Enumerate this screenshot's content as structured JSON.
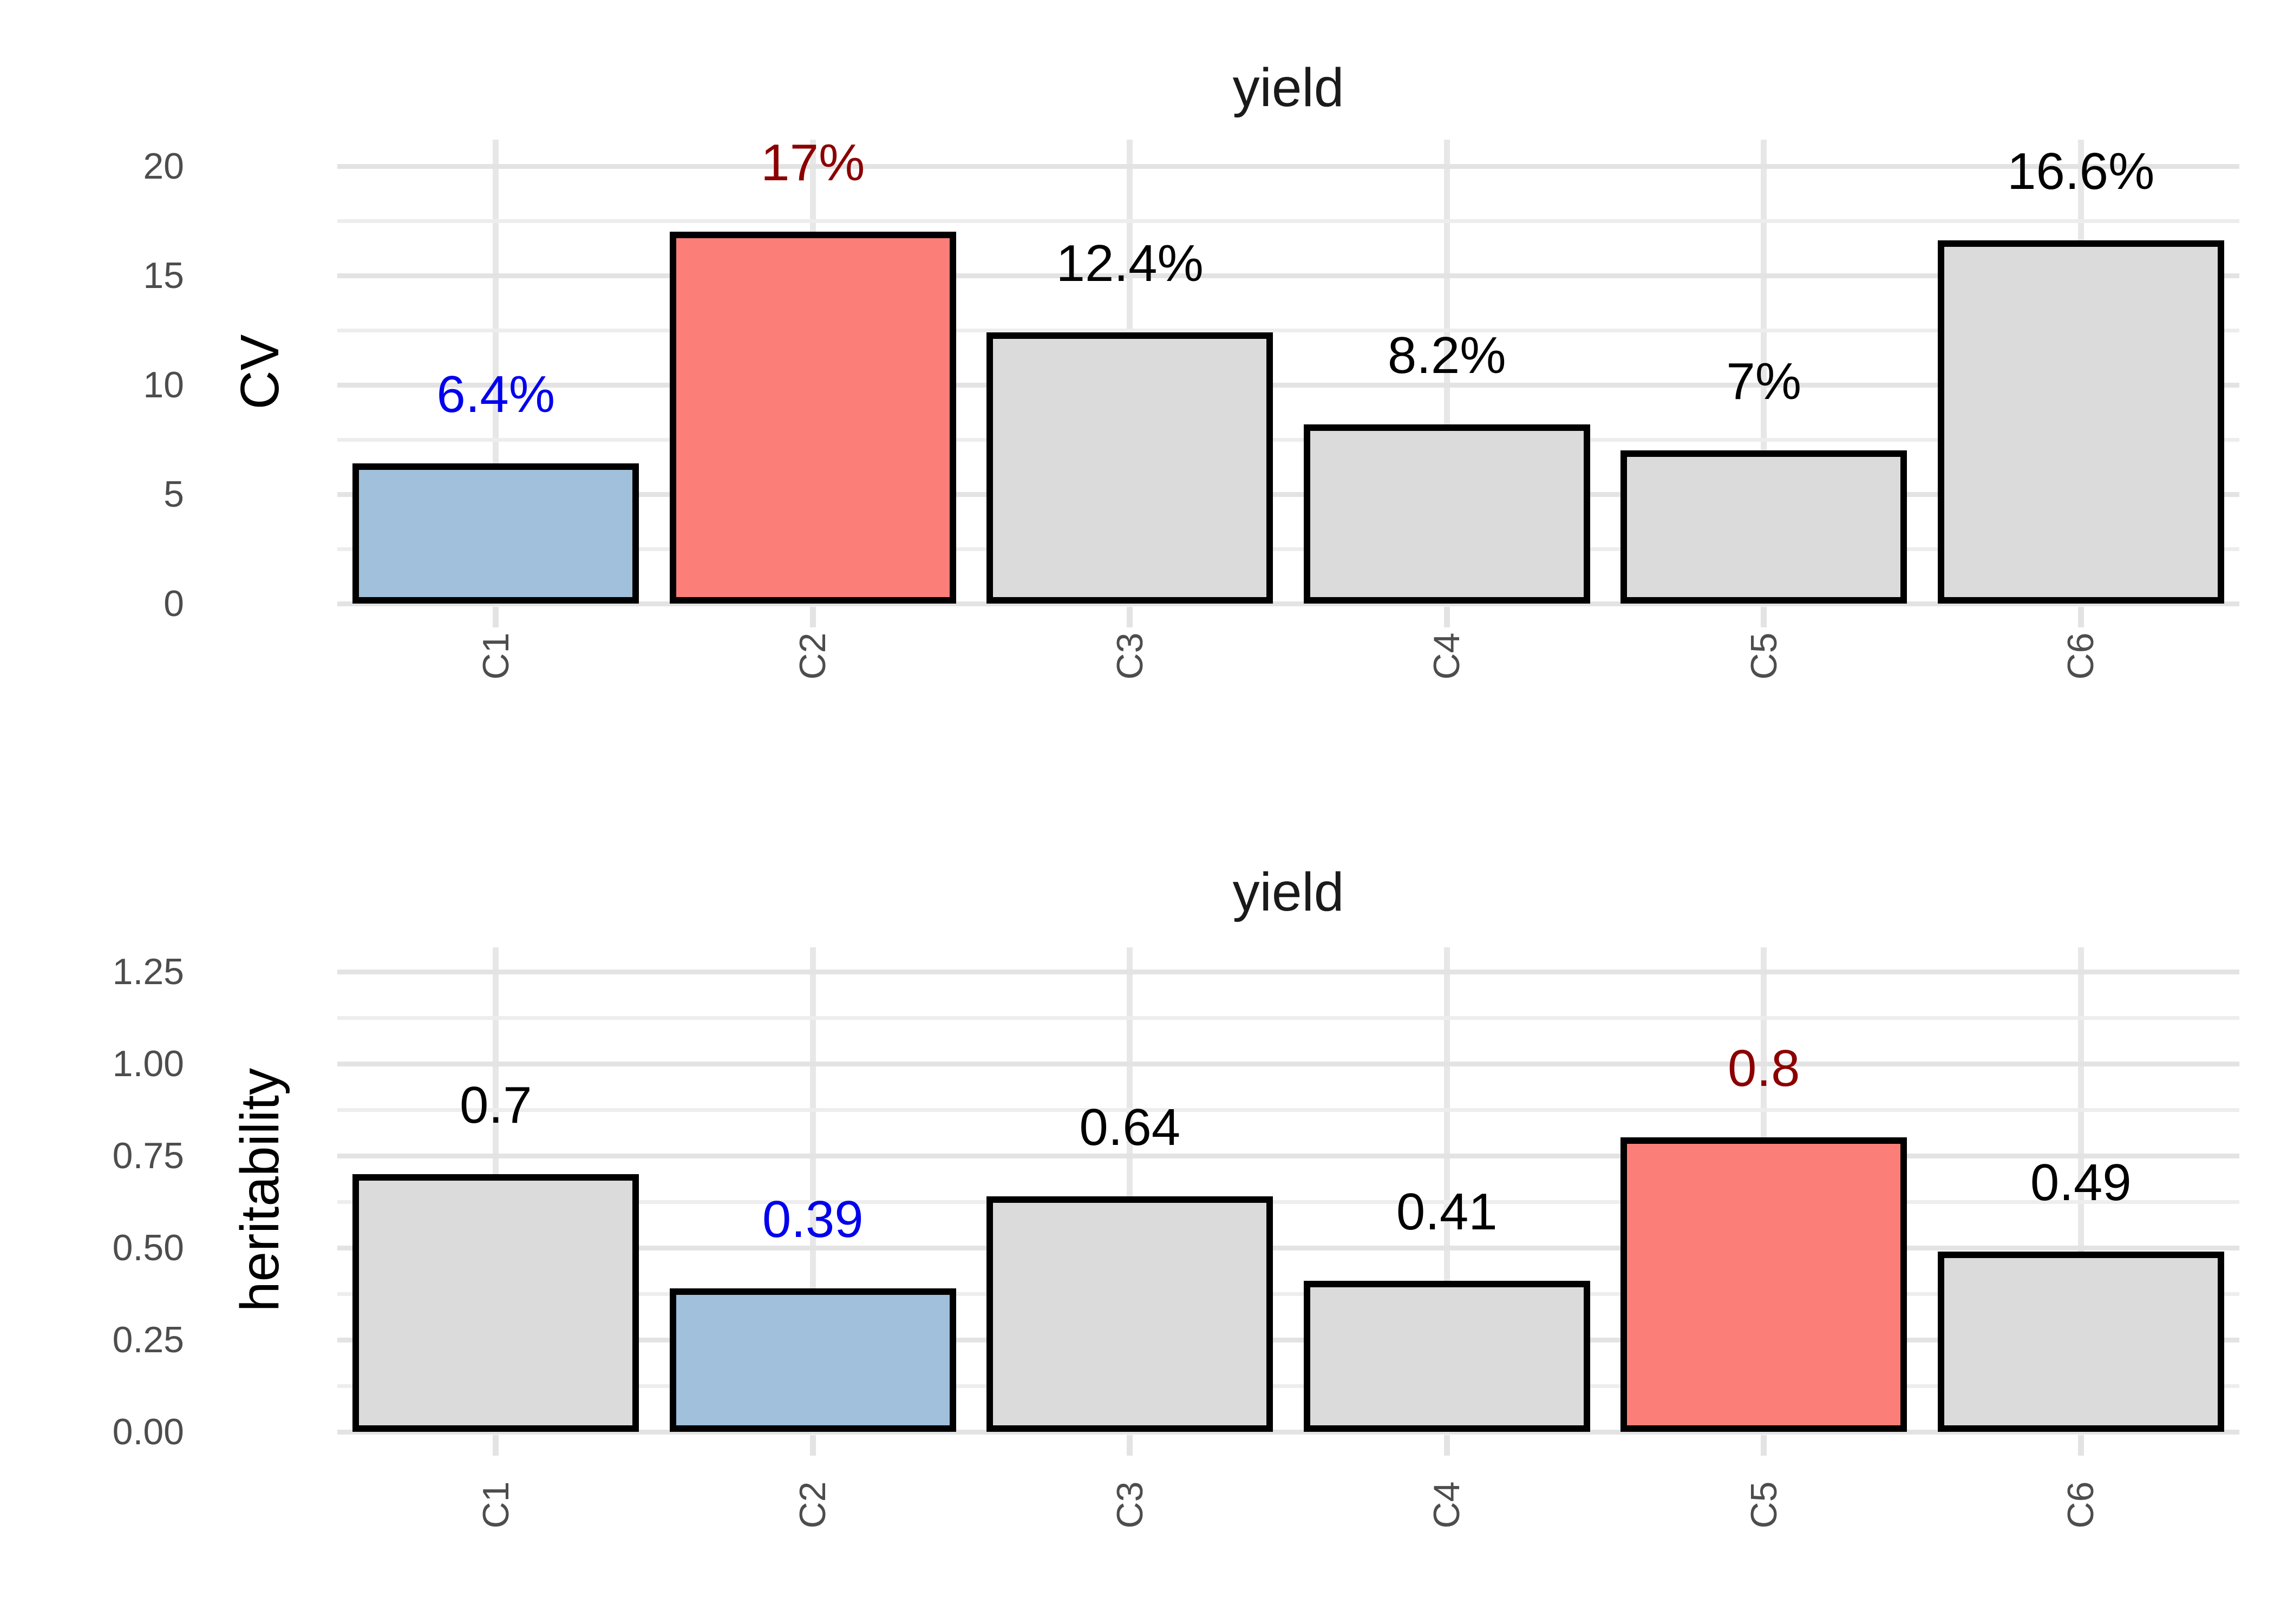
{
  "figure": {
    "background": "#FFFFFF",
    "charts_count": 2
  },
  "colors": {
    "bar_default_fill": "#DBDBDB",
    "bar_lowest_fill": "#A0C0DB",
    "bar_highest_fill": "#FB7F78",
    "bar_border": "#000000",
    "value_label_default": "#000000",
    "value_label_lowest": "#0000EE",
    "value_label_highest": "#8B0000",
    "axis_text": "#4D4D4D",
    "axis_title": "#000000",
    "chart_title": "#1A1A1A",
    "grid_major": "#E3E3E3",
    "grid_minor": "#EDEDED",
    "grid_vertical": "#E7E7E7",
    "axis_tick_mark": "#E3E3E3"
  },
  "chart_data": [
    {
      "type": "bar",
      "title": "yield",
      "xlabel": "",
      "ylabel": "CV",
      "categories": [
        "C1",
        "C2",
        "C3",
        "C4",
        "C5",
        "C6"
      ],
      "values": [
        6.4,
        17,
        12.4,
        8.2,
        7,
        16.6
      ],
      "value_labels": [
        "6.4%",
        "17%",
        "12.4%",
        "8.2%",
        "7%",
        "16.6%"
      ],
      "lowest_index": 0,
      "highest_index": 1,
      "y_axis": {
        "ticks": [
          0,
          5,
          10,
          15,
          20
        ],
        "tick_labels": [
          "0",
          "5",
          "10",
          "15",
          "20"
        ],
        "minor_gridlines_between_ticks": true,
        "ylim": [
          0,
          21.2
        ]
      },
      "grid": true,
      "legend": "none",
      "bar_width_fraction": 0.9
    },
    {
      "type": "bar",
      "title": "yield",
      "xlabel": "",
      "ylabel": "heritability",
      "categories": [
        "C1",
        "C2",
        "C3",
        "C4",
        "C5",
        "C6"
      ],
      "values": [
        0.7,
        0.39,
        0.64,
        0.41,
        0.8,
        0.49
      ],
      "value_labels": [
        "0.7",
        "0.39",
        "0.64",
        "0.41",
        "0.8",
        "0.49"
      ],
      "lowest_index": 1,
      "highest_index": 4,
      "y_axis": {
        "ticks": [
          0,
          0.25,
          0.5,
          0.75,
          1,
          1.25
        ],
        "tick_labels": [
          "0.00",
          "0.25",
          "0.50",
          "0.75",
          "1.00",
          "1.25"
        ],
        "minor_gridlines_between_ticks": true,
        "ylim": [
          0,
          1.316
        ]
      },
      "grid": true,
      "legend": "none",
      "bar_width_fraction": 0.9
    }
  ]
}
